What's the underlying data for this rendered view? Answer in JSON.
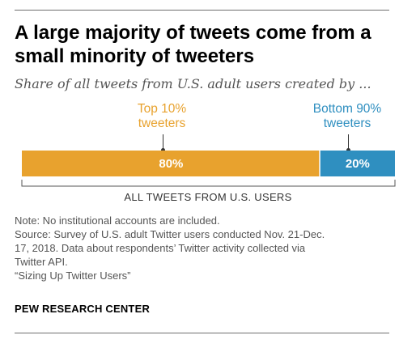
{
  "header": {
    "title_line1": "A large majority of tweets come from a",
    "title_line2": "small minority of tweeters",
    "subtitle": "Share of all tweets from U.S. adult users created by ..."
  },
  "chart_data": {
    "type": "bar",
    "orientation": "horizontal-stacked",
    "categories": [
      "Top 10% tweeters",
      "Bottom 90% tweeters"
    ],
    "values": [
      80,
      20
    ],
    "value_labels": [
      "80%",
      "20%"
    ],
    "callouts": [
      {
        "line1": "Top 10%",
        "line2": "tweeters"
      },
      {
        "line1": "Bottom 90%",
        "line2": "tweeters"
      }
    ],
    "axis_caption": "ALL TWEETS FROM U.S. USERS",
    "xlim": [
      0,
      100
    ],
    "colors": [
      "#e8a22e",
      "#2f8fc0"
    ],
    "callout_colors": [
      "#e8a22e",
      "#2f8fc0"
    ]
  },
  "notes": {
    "note": "Note: No institutional accounts are included.",
    "source_line1": "Source: Survey of U.S. adult Twitter users conducted Nov. 21-Dec.",
    "source_line2": "17, 2018. Data about respondents’ Twitter activity collected via",
    "source_line3": "Twitter API.",
    "report": "“Sizing Up Twitter Users”"
  },
  "footer": {
    "brand": "PEW RESEARCH CENTER"
  }
}
